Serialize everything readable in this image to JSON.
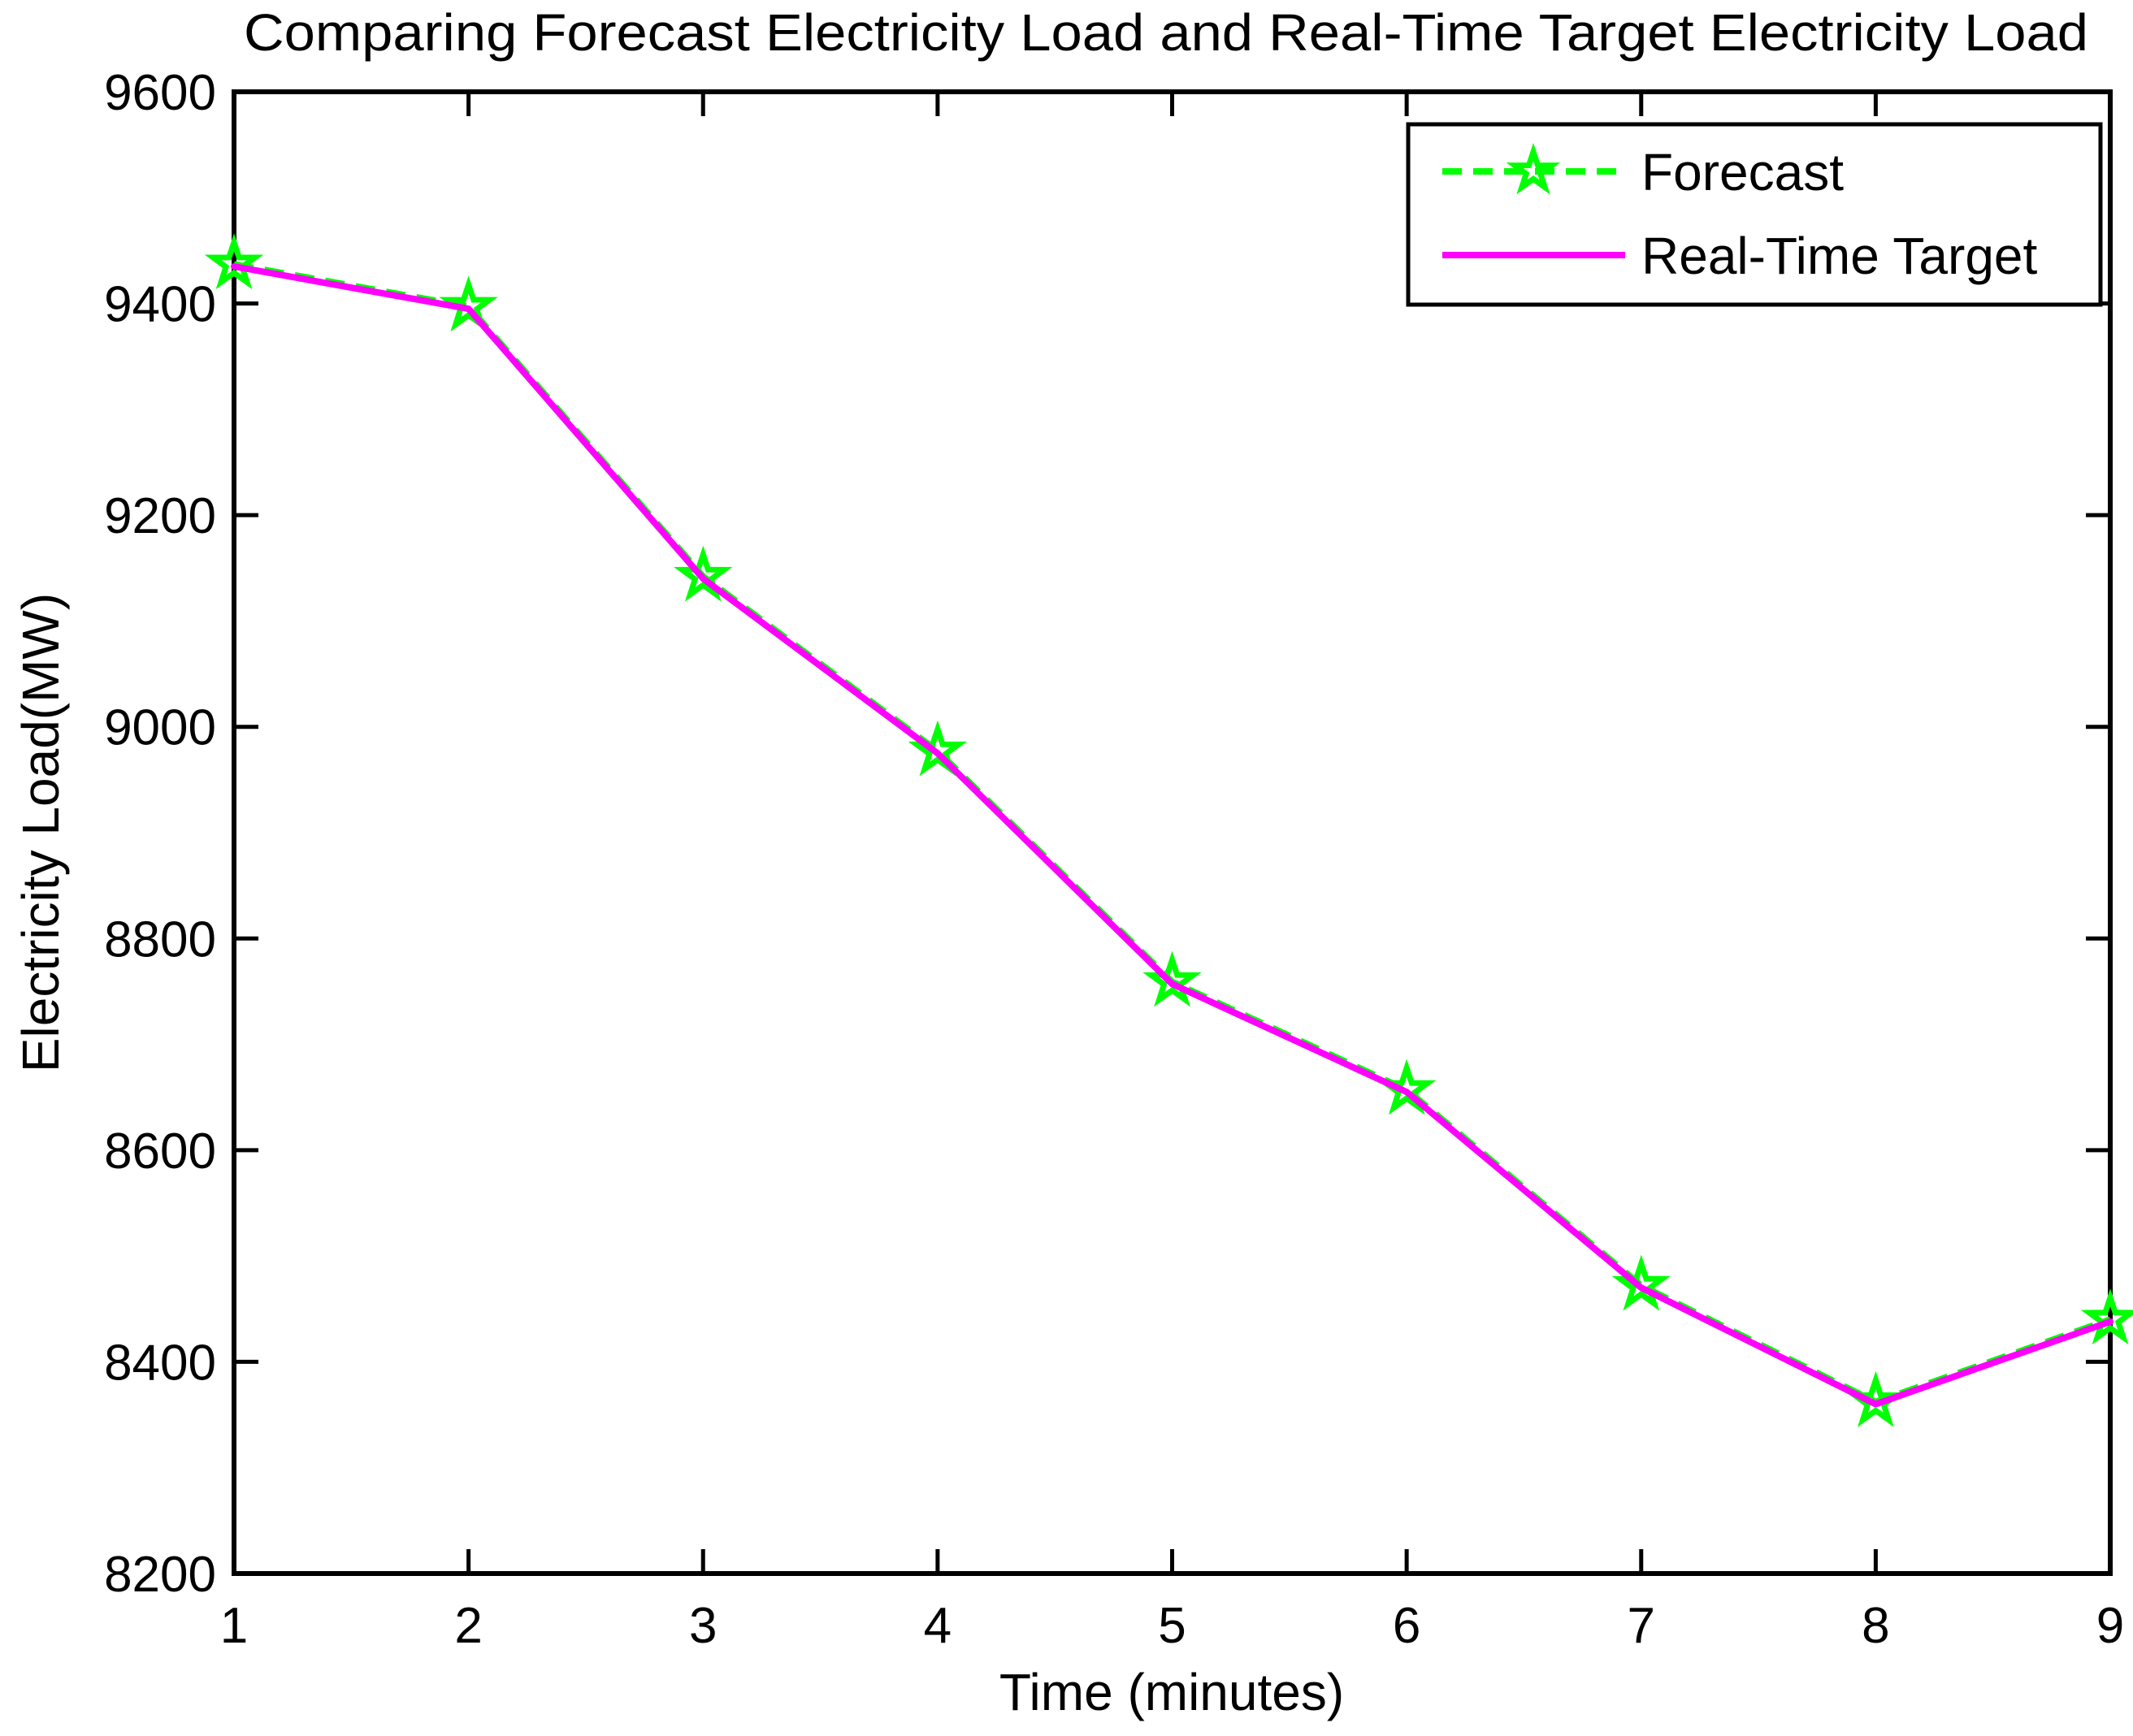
{
  "figure": {
    "title": "Comparing Forecast Electricity Load and Real-Time Target Electricity Load",
    "xlabel": "Time (minutes)",
    "ylabel": "Electricity Load(MW)"
  },
  "legend": {
    "entries": [
      {
        "label": "Forecast",
        "color": "#00ff00",
        "line_style": "dashed",
        "marker": "pentagram"
      },
      {
        "label": "Real-Time Target",
        "color": "#ff00ff",
        "line_style": "solid",
        "marker": "none"
      }
    ],
    "position": "top-right"
  },
  "colors": {
    "forecast": "#00ff00",
    "target": "#ff00ff",
    "axis": "#000000",
    "background": "#ffffff"
  },
  "chart_data": {
    "type": "line",
    "title": "Comparing Forecast Electricity Load and Real-Time Target Electricity Load",
    "xlabel": "Time (minutes)",
    "ylabel": "Electricity Load(MW)",
    "x": [
      1,
      2,
      3,
      4,
      5,
      6,
      7,
      8,
      9
    ],
    "series": [
      {
        "name": "Forecast",
        "color": "#00ff00",
        "line_style": "dashed",
        "marker": "pentagram",
        "values": [
          9437,
          9397,
          9142,
          8977,
          8759,
          8657,
          8472,
          8362,
          8440
        ]
      },
      {
        "name": "Real-Time Target",
        "color": "#ff00ff",
        "line_style": "solid",
        "marker": "none",
        "values": [
          9435,
          9395,
          9140,
          8975,
          8757,
          8655,
          8470,
          8360,
          8438
        ]
      }
    ],
    "xlim": [
      1,
      9
    ],
    "ylim": [
      8200,
      9600
    ],
    "x_ticks": [
      1,
      2,
      3,
      4,
      5,
      6,
      7,
      8,
      9
    ],
    "y_ticks": [
      8200,
      8400,
      8600,
      8800,
      9000,
      9200,
      9400,
      9600
    ],
    "grid": false,
    "legend_position": "top-right"
  }
}
